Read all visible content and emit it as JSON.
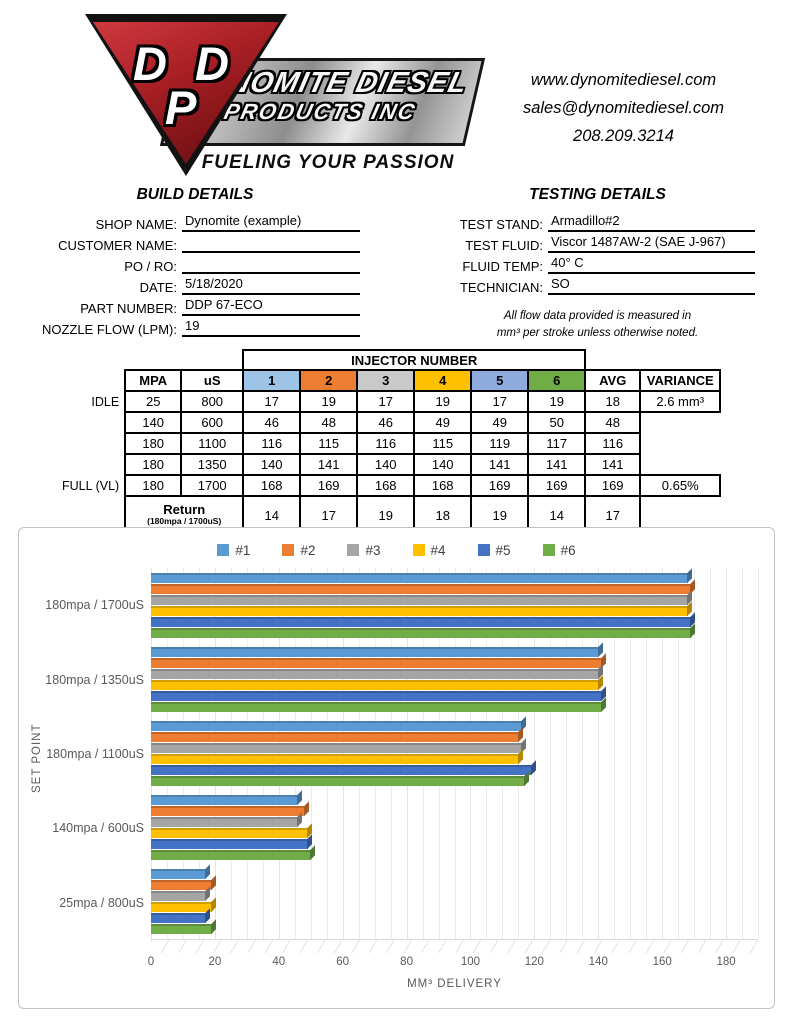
{
  "header": {
    "logo": {
      "letter_d1": "D",
      "letter_d2": "D",
      "letter_p": "P",
      "company_line1": "DYNOMITE DIESEL",
      "company_line2": "PRODUCTS INC",
      "tagline": "FUELING YOUR PASSION"
    },
    "contact": {
      "website": "www.dynomitediesel.com",
      "email": "sales@dynomitediesel.com",
      "phone": "208.209.3214"
    }
  },
  "build_details": {
    "title": "BUILD DETAILS",
    "fields": [
      {
        "label": "SHOP NAME:",
        "value": "Dynomite (example)"
      },
      {
        "label": "CUSTOMER NAME:",
        "value": ""
      },
      {
        "label": "PO / RO:",
        "value": ""
      },
      {
        "label": "DATE:",
        "value": "5/18/2020"
      },
      {
        "label": "PART NUMBER:",
        "value": "DDP 67-ECO"
      },
      {
        "label": "NOZZLE FLOW (LPM):",
        "value": "19"
      }
    ]
  },
  "testing_details": {
    "title": "TESTING DETAILS",
    "fields": [
      {
        "label": "TEST STAND:",
        "value": "Armadillo#2"
      },
      {
        "label": "TEST FLUID:",
        "value": "Viscor 1487AW-2 (SAE J-967)"
      },
      {
        "label": "FLUID TEMP:",
        "value": "40° C"
      },
      {
        "label": "TECHNICIAN:",
        "value": "SO"
      }
    ],
    "note_line1": "All flow data provided is measured in",
    "note_line2": "mm³ per stroke unless otherwise noted."
  },
  "table": {
    "injector_header": "INJECTOR NUMBER",
    "columns": [
      "MPA",
      "uS",
      "1",
      "2",
      "3",
      "4",
      "5",
      "6",
      "AVG",
      "VARIANCE"
    ],
    "injector_header_colors": [
      "#9DC3E6",
      "#ED7D31",
      "#C9C9C9",
      "#FFC000",
      "#8FAADC",
      "#70AD47"
    ],
    "rows": [
      {
        "row_label": "IDLE",
        "mpa": "25",
        "us": "800",
        "values": [
          "17",
          "19",
          "17",
          "19",
          "17",
          "19"
        ],
        "avg": "18",
        "variance": "2.6 mm³"
      },
      {
        "row_label": "",
        "mpa": "140",
        "us": "600",
        "values": [
          "46",
          "48",
          "46",
          "49",
          "49",
          "50"
        ],
        "avg": "48",
        "variance": ""
      },
      {
        "row_label": "",
        "mpa": "180",
        "us": "1100",
        "values": [
          "116",
          "115",
          "116",
          "115",
          "119",
          "117"
        ],
        "avg": "116",
        "variance": ""
      },
      {
        "row_label": "",
        "mpa": "180",
        "us": "1350",
        "values": [
          "140",
          "141",
          "140",
          "140",
          "141",
          "141"
        ],
        "avg": "141",
        "variance": ""
      },
      {
        "row_label": "FULL (VL)",
        "mpa": "180",
        "us": "1700",
        "values": [
          "168",
          "169",
          "168",
          "168",
          "169",
          "169"
        ],
        "avg": "169",
        "variance": "0.65%"
      }
    ],
    "return_row": {
      "label_main": "Return",
      "label_sub": "(180mpa / 1700uS)",
      "values": [
        "14",
        "17",
        "19",
        "18",
        "19",
        "14"
      ],
      "avg": "17"
    }
  },
  "chart_data": {
    "type": "bar",
    "orientation": "horizontal",
    "style": "3d",
    "categories": [
      "180mpa / 1700uS",
      "180mpa / 1350uS",
      "180mpa / 1100uS",
      "140mpa / 600uS",
      "25mpa / 800uS"
    ],
    "series": [
      {
        "name": "#1",
        "color": "#5B9BD5",
        "values": [
          168,
          140,
          116,
          46,
          17
        ]
      },
      {
        "name": "#2",
        "color": "#ED7D31",
        "values": [
          169,
          141,
          115,
          48,
          19
        ]
      },
      {
        "name": "#3",
        "color": "#A5A5A5",
        "values": [
          168,
          140,
          116,
          46,
          17
        ]
      },
      {
        "name": "#4",
        "color": "#FFC000",
        "values": [
          168,
          140,
          115,
          49,
          19
        ]
      },
      {
        "name": "#5",
        "color": "#4472C4",
        "values": [
          169,
          141,
          119,
          49,
          17
        ]
      },
      {
        "name": "#6",
        "color": "#70AD47",
        "values": [
          169,
          141,
          117,
          50,
          19
        ]
      }
    ],
    "title": "",
    "xlabel": "MM³ DELIVERY",
    "ylabel": "SET POINT",
    "xlim": [
      0,
      190
    ],
    "xticks": [
      0,
      20,
      40,
      60,
      80,
      100,
      120,
      140,
      160,
      180
    ],
    "minor_grid_step": 5,
    "grid": true,
    "legend_position": "top"
  }
}
